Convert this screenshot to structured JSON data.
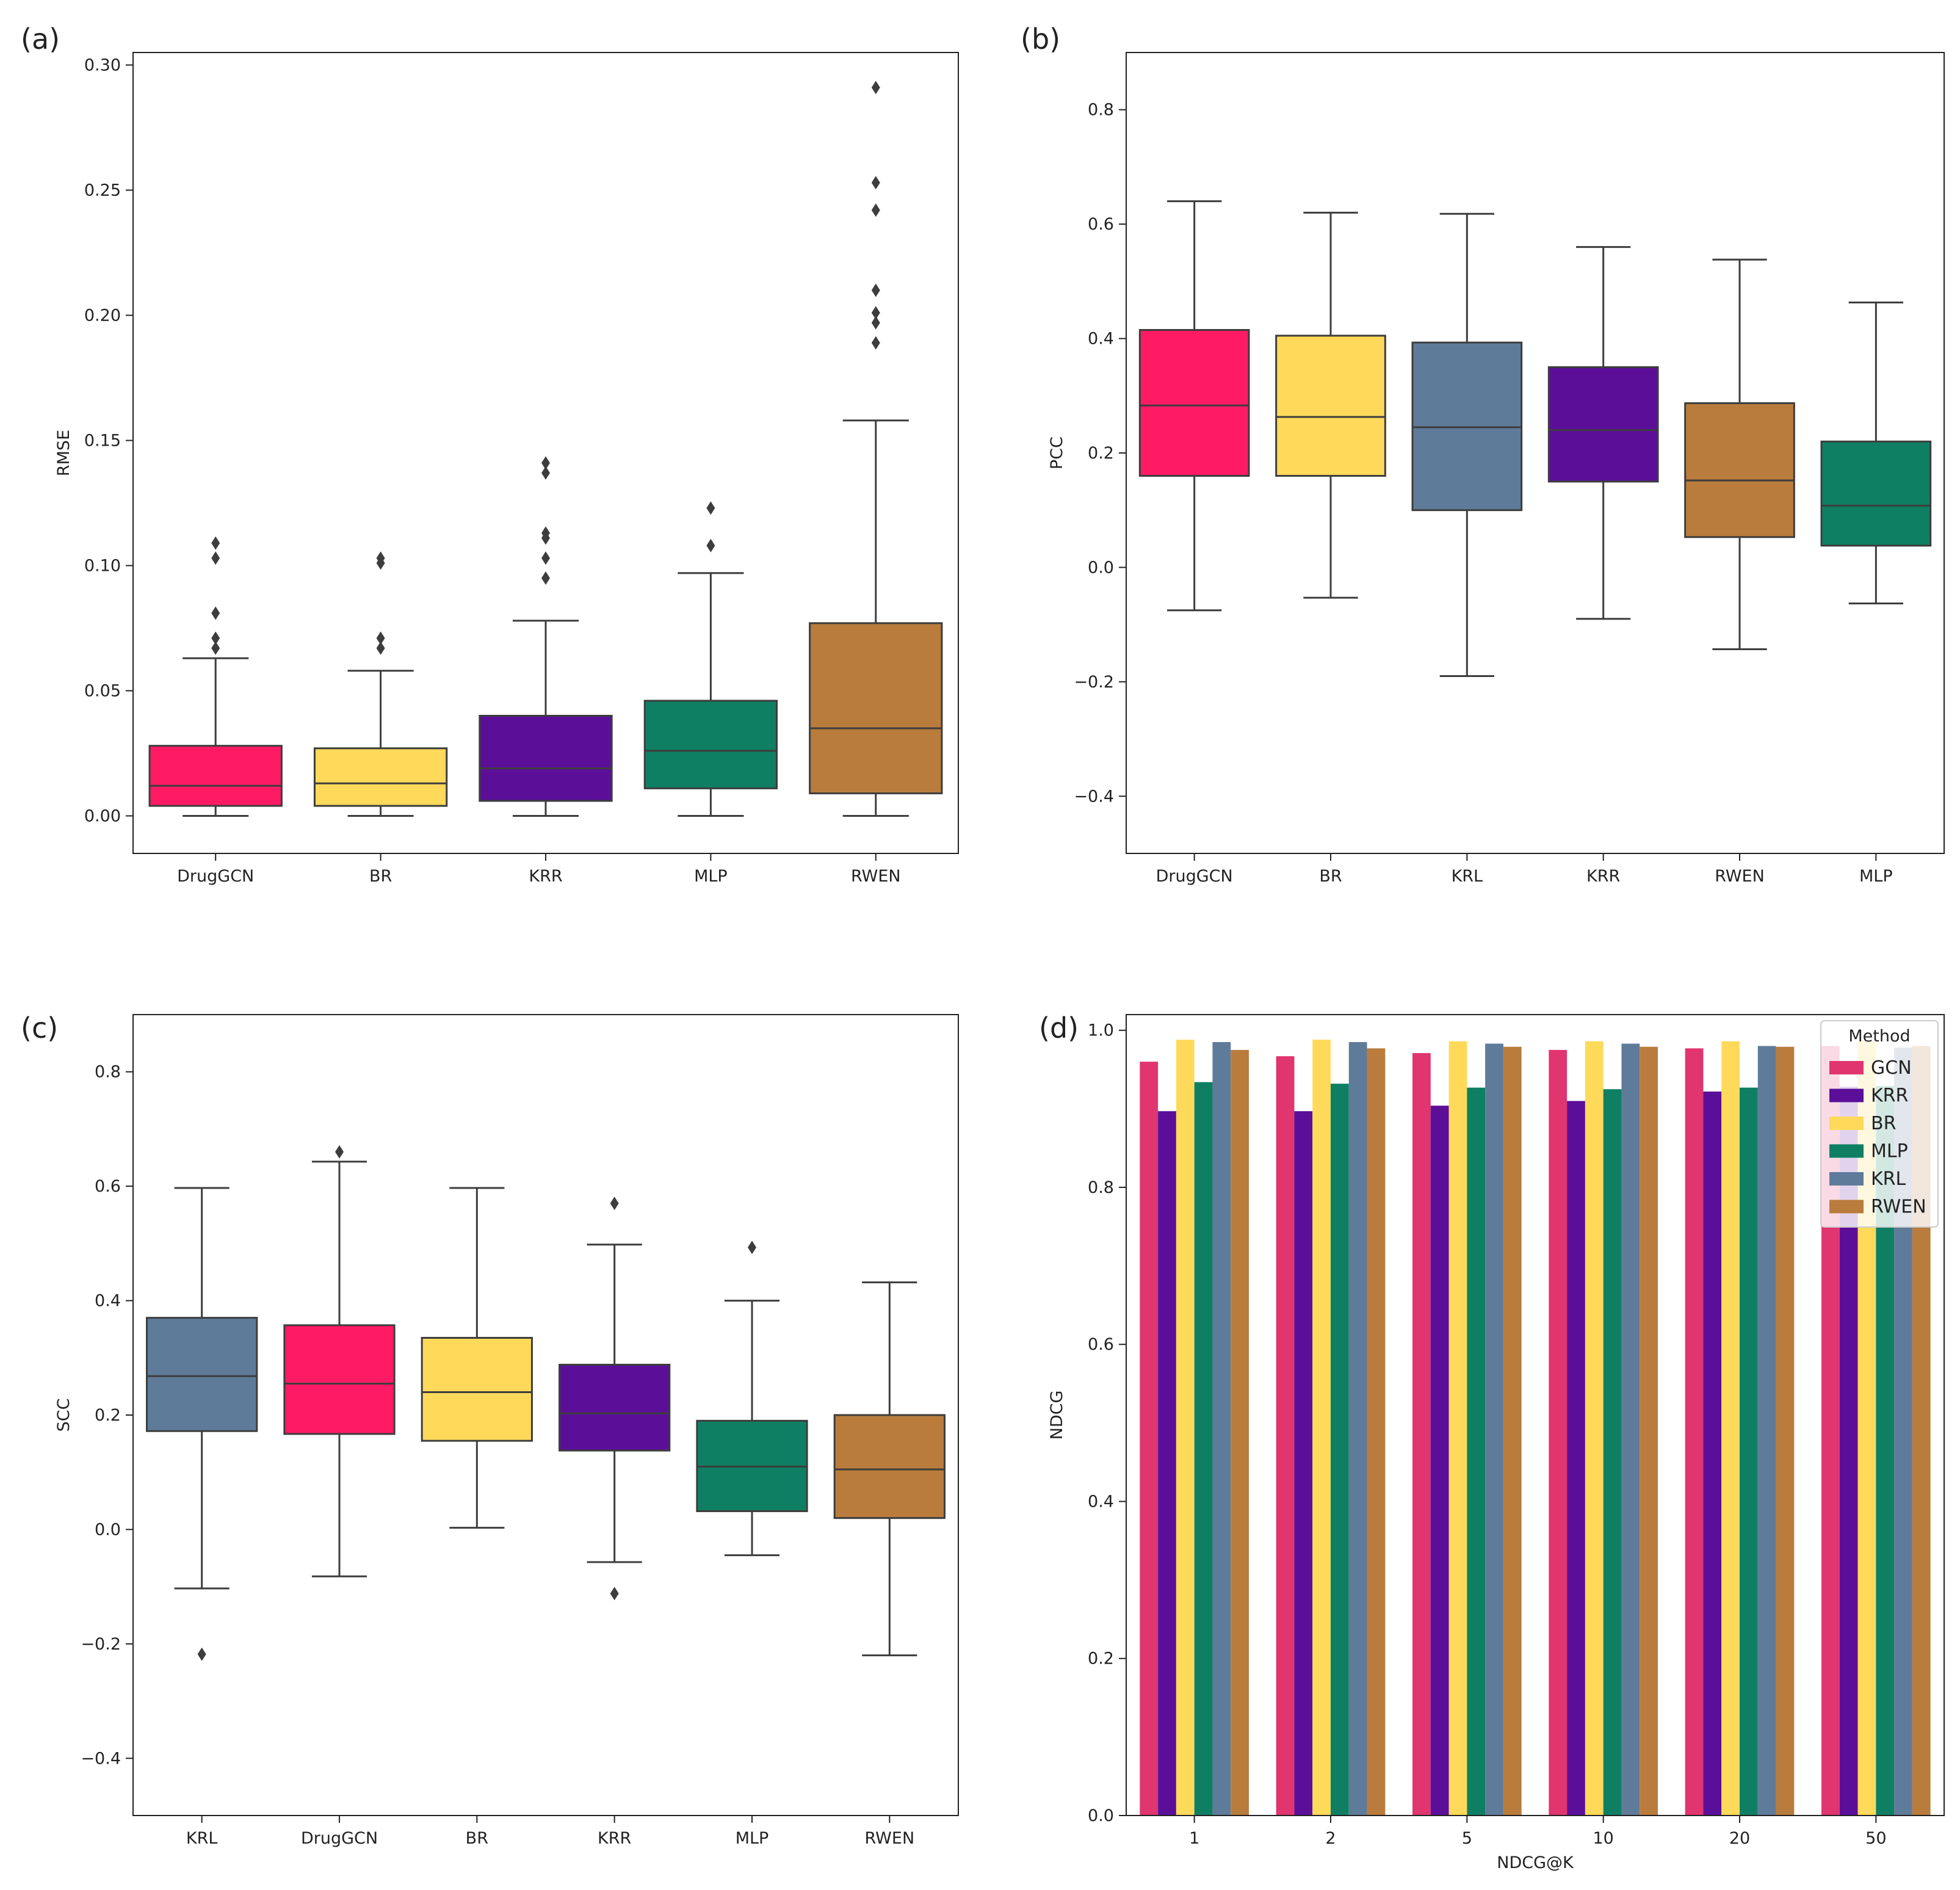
{
  "colors": {
    "DrugGCN": "#ff1a66",
    "GCN": "#e0356f",
    "BR": "#ffd95a",
    "KRR": "#5b0f99",
    "MLP": "#0f7f63",
    "KRL": "#5f7b9a",
    "RWEN": "#b97c3c"
  },
  "chart_data": [
    {
      "id": "a",
      "panel_label": "(a)",
      "type": "box",
      "ylabel": "RMSE",
      "xlabel": "",
      "ylim": [
        -0.015,
        0.305
      ],
      "yticks": [
        0.0,
        0.05,
        0.1,
        0.15,
        0.2,
        0.25,
        0.3
      ],
      "ytick_labels": [
        "0.00",
        "0.05",
        "0.10",
        "0.15",
        "0.20",
        "0.25",
        "0.30"
      ],
      "series": [
        {
          "name": "DrugGCN",
          "whisker_low": 0.0,
          "q1": 0.004,
          "median": 0.012,
          "q3": 0.028,
          "whisker_high": 0.063,
          "outliers": [
            0.067,
            0.071,
            0.081,
            0.103,
            0.109
          ]
        },
        {
          "name": "BR",
          "whisker_low": 0.0,
          "q1": 0.004,
          "median": 0.013,
          "q3": 0.027,
          "whisker_high": 0.058,
          "outliers": [
            0.067,
            0.071,
            0.101,
            0.103
          ]
        },
        {
          "name": "KRR",
          "whisker_low": 0.0,
          "q1": 0.006,
          "median": 0.019,
          "q3": 0.04,
          "whisker_high": 0.078,
          "outliers": [
            0.095,
            0.103,
            0.111,
            0.113,
            0.137,
            0.141
          ]
        },
        {
          "name": "MLP",
          "whisker_low": 0.0,
          "q1": 0.011,
          "median": 0.026,
          "q3": 0.046,
          "whisker_high": 0.097,
          "outliers": [
            0.108,
            0.123
          ]
        },
        {
          "name": "RWEN",
          "whisker_low": 0.0,
          "q1": 0.009,
          "median": 0.035,
          "q3": 0.077,
          "whisker_high": 0.158,
          "outliers": [
            0.189,
            0.197,
            0.201,
            0.21,
            0.242,
            0.253,
            0.291
          ]
        }
      ]
    },
    {
      "id": "b",
      "panel_label": "(b)",
      "type": "box",
      "ylabel": "PCC",
      "xlabel": "",
      "ylim": [
        -0.5,
        0.9
      ],
      "yticks": [
        -0.4,
        -0.2,
        0.0,
        0.2,
        0.4,
        0.6,
        0.8
      ],
      "ytick_labels": [
        "−0.4",
        "−0.2",
        "0.0",
        "0.2",
        "0.4",
        "0.6",
        "0.8"
      ],
      "series": [
        {
          "name": "DrugGCN",
          "whisker_low": -0.075,
          "q1": 0.16,
          "median": 0.283,
          "q3": 0.415,
          "whisker_high": 0.64,
          "outliers": []
        },
        {
          "name": "BR",
          "whisker_low": -0.053,
          "q1": 0.16,
          "median": 0.263,
          "q3": 0.405,
          "whisker_high": 0.62,
          "outliers": []
        },
        {
          "name": "KRL",
          "whisker_low": -0.19,
          "q1": 0.1,
          "median": 0.245,
          "q3": 0.393,
          "whisker_high": 0.618,
          "outliers": []
        },
        {
          "name": "KRR",
          "whisker_low": -0.09,
          "q1": 0.15,
          "median": 0.24,
          "q3": 0.35,
          "whisker_high": 0.56,
          "outliers": []
        },
        {
          "name": "RWEN",
          "whisker_low": -0.143,
          "q1": 0.053,
          "median": 0.152,
          "q3": 0.287,
          "whisker_high": 0.538,
          "outliers": []
        },
        {
          "name": "MLP",
          "whisker_low": -0.063,
          "q1": 0.038,
          "median": 0.108,
          "q3": 0.22,
          "whisker_high": 0.463,
          "outliers": []
        }
      ]
    },
    {
      "id": "c",
      "panel_label": "(c)",
      "type": "box",
      "ylabel": "SCC",
      "xlabel": "",
      "ylim": [
        -0.5,
        0.9
      ],
      "yticks": [
        -0.4,
        -0.2,
        0.0,
        0.2,
        0.4,
        0.6,
        0.8
      ],
      "ytick_labels": [
        "−0.4",
        "−0.2",
        "0.0",
        "0.2",
        "0.4",
        "0.6",
        "0.8"
      ],
      "series": [
        {
          "name": "KRL",
          "whisker_low": -0.103,
          "q1": 0.172,
          "median": 0.268,
          "q3": 0.37,
          "whisker_high": 0.597,
          "outliers": [
            -0.218
          ]
        },
        {
          "name": "DrugGCN",
          "whisker_low": -0.082,
          "q1": 0.167,
          "median": 0.255,
          "q3": 0.357,
          "whisker_high": 0.643,
          "outliers": [
            0.66
          ]
        },
        {
          "name": "BR",
          "whisker_low": 0.003,
          "q1": 0.155,
          "median": 0.24,
          "q3": 0.335,
          "whisker_high": 0.597,
          "outliers": []
        },
        {
          "name": "KRR",
          "whisker_low": -0.057,
          "q1": 0.138,
          "median": 0.203,
          "q3": 0.288,
          "whisker_high": 0.498,
          "outliers": [
            -0.112,
            0.57
          ]
        },
        {
          "name": "MLP",
          "whisker_low": -0.045,
          "q1": 0.032,
          "median": 0.11,
          "q3": 0.19,
          "whisker_high": 0.4,
          "outliers": [
            0.493
          ]
        },
        {
          "name": "RWEN",
          "whisker_low": -0.22,
          "q1": 0.02,
          "median": 0.105,
          "q3": 0.2,
          "whisker_high": 0.432,
          "outliers": []
        }
      ]
    },
    {
      "id": "d",
      "panel_label": "(d)",
      "type": "bar",
      "ylabel": "NDCG",
      "xlabel": "NDCG@K",
      "ylim": [
        0.0,
        1.02
      ],
      "yticks": [
        0.0,
        0.2,
        0.4,
        0.6,
        0.8,
        1.0
      ],
      "ytick_labels": [
        "0.0",
        "0.2",
        "0.4",
        "0.6",
        "0.8",
        "1.0"
      ],
      "categories": [
        "1",
        "2",
        "5",
        "10",
        "20",
        "50"
      ],
      "legend": {
        "title": "Method",
        "placement": "top-right"
      },
      "series": [
        {
          "name": "GCN",
          "values": [
            0.96,
            0.967,
            0.971,
            0.975,
            0.977,
            0.98
          ]
        },
        {
          "name": "KRR",
          "values": [
            0.897,
            0.897,
            0.904,
            0.91,
            0.922,
            0.928
          ]
        },
        {
          "name": "BR",
          "values": [
            0.988,
            0.988,
            0.986,
            0.986,
            0.986,
            0.986
          ]
        },
        {
          "name": "MLP",
          "values": [
            0.934,
            0.932,
            0.927,
            0.925,
            0.927,
            0.929
          ]
        },
        {
          "name": "KRL",
          "values": [
            0.985,
            0.985,
            0.983,
            0.983,
            0.98,
            0.978
          ]
        },
        {
          "name": "RWEN",
          "values": [
            0.975,
            0.977,
            0.979,
            0.979,
            0.979,
            0.98
          ]
        }
      ]
    }
  ]
}
